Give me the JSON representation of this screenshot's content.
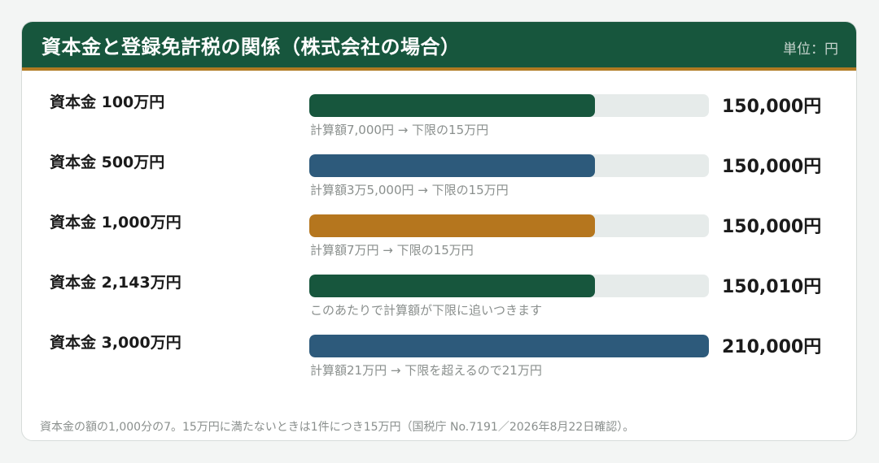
{
  "header": {
    "title": "資本金と登録免許税の関係（株式会社の場合）",
    "unit": "単位：円"
  },
  "chart_data": {
    "type": "bar",
    "orientation": "horizontal",
    "xlim": [
      0,
      210000
    ],
    "categories": [
      "資本金 100万円",
      "資本金 500万円",
      "資本金 1,000万円",
      "資本金 2,143万円",
      "資本金 3,000万円"
    ],
    "values": [
      150000,
      150000,
      150000,
      150010,
      210000
    ],
    "value_labels": [
      "150,000円",
      "150,000円",
      "150,000円",
      "150,010円",
      "210,000円"
    ],
    "notes": [
      "計算額7,000円 → 下限の15万円",
      "計算額3万5,000円 → 下限の15万円",
      "計算額7万円 → 下限の15万円",
      "このあたりで計算額が下限に追いつきます",
      "計算額21万円 → 下限を超えるので21万円"
    ],
    "colors": [
      "#17563d",
      "#2d5a7b",
      "#b5761e",
      "#17563d",
      "#2d5a7b"
    ],
    "track_color": "#e6ebea",
    "grid": false
  },
  "footnote": "資本金の額の1,000分の7。15万円に満たないときは1件につき15万円（国税庁 No.7191／2026年8月22日確認）。"
}
